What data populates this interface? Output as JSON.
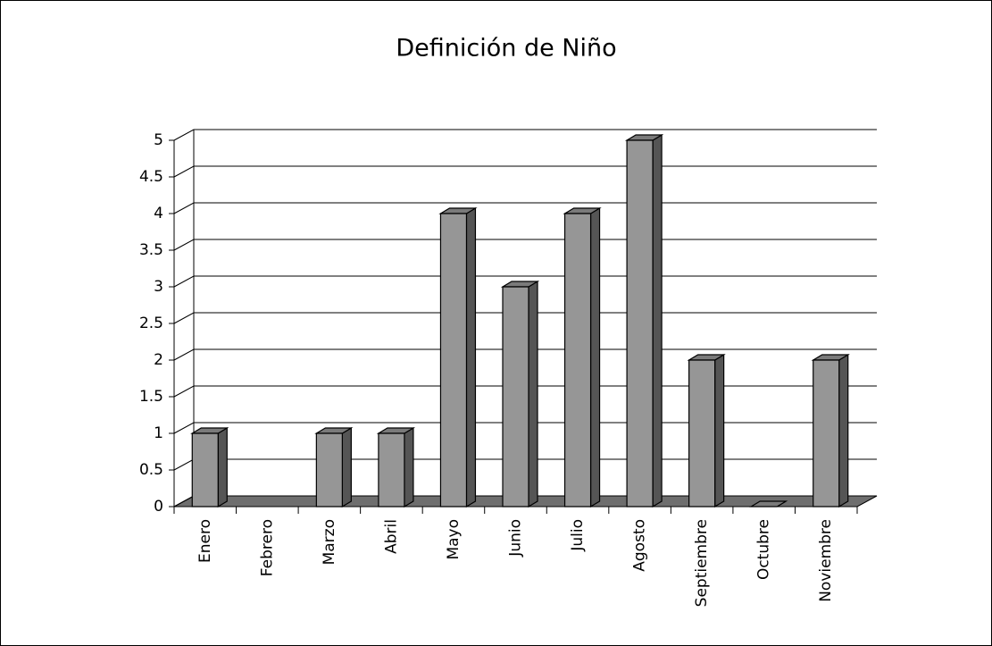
{
  "chart_data": {
    "type": "bar3d",
    "title": "Definición de Niño",
    "categories": [
      "Enero",
      "Febrero",
      "Marzo",
      "Abril",
      "Mayo",
      "Junio",
      "Julio",
      "Agosto",
      "Septiembre",
      "Octubre",
      "Noviembre"
    ],
    "values": [
      1,
      null,
      1,
      1,
      4,
      3,
      4,
      5,
      2,
      0,
      2
    ],
    "color": "#969696",
    "ylim": [
      0,
      5
    ],
    "yticks": [
      0,
      0.5,
      1,
      1.5,
      2,
      2.5,
      3,
      3.5,
      4,
      4.5,
      5
    ],
    "grid": true
  }
}
